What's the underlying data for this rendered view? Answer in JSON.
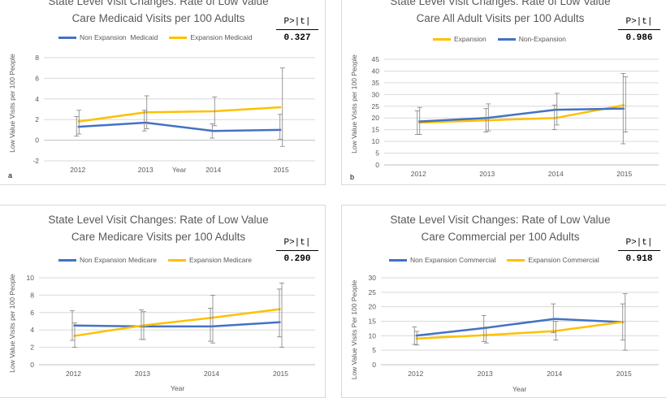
{
  "p_header": "P>|t|",
  "chart_data": [
    {
      "type": "line",
      "panel_label": "a",
      "title_lines": [
        "State Level Visit Changes: Rate of Low Value",
        "Care Medicaid Visits per 100 Adults"
      ],
      "p_value": "0.327",
      "xlabel": "Year",
      "ylabel": "Low Value Visits per 100 People",
      "categories": [
        "2012",
        "2013",
        "2014",
        "2015"
      ],
      "ylim": [
        -2,
        8
      ],
      "yticks": [
        -2,
        0,
        2,
        4,
        6,
        8
      ],
      "grid": true,
      "series": [
        {
          "name": "Non Expansion  Medicaid",
          "color": "#4472c4",
          "values": [
            1.3,
            1.7,
            0.9,
            1.0
          ],
          "err_low": [
            0.4,
            0.9,
            0.2,
            0.1
          ],
          "err_high": [
            2.3,
            2.9,
            1.6,
            2.5
          ]
        },
        {
          "name": "Expansion Medicaid",
          "color": "#ffc000",
          "values": [
            1.8,
            2.7,
            2.8,
            3.2
          ],
          "err_low": [
            0.6,
            1.1,
            1.4,
            -0.6
          ],
          "err_high": [
            2.9,
            4.3,
            4.2,
            7.0
          ]
        }
      ]
    },
    {
      "type": "line",
      "panel_label": "b",
      "title_lines": [
        "State Level Visit Changes: Rate of Low Value",
        "Care All Adult Visits per 100 Adults"
      ],
      "p_value": "0.986",
      "xlabel": "",
      "ylabel": "Low Value Visits per 100 People",
      "categories": [
        "2012",
        "2013",
        "2014",
        "2015"
      ],
      "ylim": [
        0,
        45
      ],
      "yticks": [
        0,
        5,
        10,
        15,
        20,
        25,
        30,
        35,
        40,
        45
      ],
      "grid": true,
      "series": [
        {
          "name": "Expansion",
          "color": "#ffc000",
          "values": [
            18,
            19,
            20,
            25.5
          ],
          "err_low": [
            13,
            14,
            15,
            9
          ],
          "err_high": [
            23,
            24,
            25.5,
            39
          ]
        },
        {
          "name": "Non-Expansion",
          "color": "#4472c4",
          "values": [
            18.5,
            20,
            23.5,
            24
          ],
          "err_low": [
            13,
            14.5,
            17,
            14
          ],
          "err_high": [
            24.5,
            26,
            30.5,
            37.5
          ]
        }
      ]
    },
    {
      "type": "line",
      "panel_label": "",
      "title_lines": [
        "State Level Visit Changes: Rate of Low Value",
        "Care Medicare Visits per 100 Adults"
      ],
      "p_value": "0.290",
      "xlabel": "Year",
      "ylabel": "Low Value Visits per 100 People",
      "categories": [
        "2012",
        "2013",
        "2014",
        "2015"
      ],
      "ylim": [
        0,
        10
      ],
      "yticks": [
        0,
        2,
        4,
        6,
        8,
        10
      ],
      "grid": true,
      "series": [
        {
          "name": "Non Expansion Medicare",
          "color": "#4472c4",
          "values": [
            4.5,
            4.4,
            4.4,
            4.9
          ],
          "err_low": [
            2.8,
            2.9,
            2.7,
            3.2
          ],
          "err_high": [
            6.2,
            6.3,
            6.5,
            8.7
          ]
        },
        {
          "name": "Expansion Medicare",
          "color": "#ffc000",
          "values": [
            3.3,
            4.5,
            5.4,
            6.4
          ],
          "err_low": [
            2.0,
            2.9,
            2.5,
            2.0
          ],
          "err_high": [
            4.8,
            6.1,
            8.0,
            9.4
          ]
        }
      ]
    },
    {
      "type": "line",
      "panel_label": "",
      "title_lines": [
        "State Level Visit Changes: Rate of Low Value",
        "Care Commercial per 100 Adults"
      ],
      "p_value": "0.918",
      "xlabel": "Year",
      "ylabel": "Low Value Visits Per 100 People",
      "categories": [
        "2012",
        "2013",
        "2014",
        "2015"
      ],
      "ylim": [
        0,
        30
      ],
      "yticks": [
        0,
        5,
        10,
        15,
        20,
        25,
        30
      ],
      "grid": true,
      "series": [
        {
          "name": "Non Expansion Commercial",
          "color": "#4472c4",
          "values": [
            10,
            12.7,
            15.8,
            14.7
          ],
          "err_low": [
            7,
            8,
            11,
            8.5
          ],
          "err_high": [
            13,
            17,
            21,
            21
          ]
        },
        {
          "name": "Expansion Commercial",
          "color": "#ffc000",
          "values": [
            9,
            10.2,
            11.6,
            14.8
          ],
          "err_low": [
            6.8,
            7.5,
            8.5,
            5
          ],
          "err_high": [
            11.5,
            13,
            15,
            24.5
          ]
        }
      ]
    }
  ]
}
